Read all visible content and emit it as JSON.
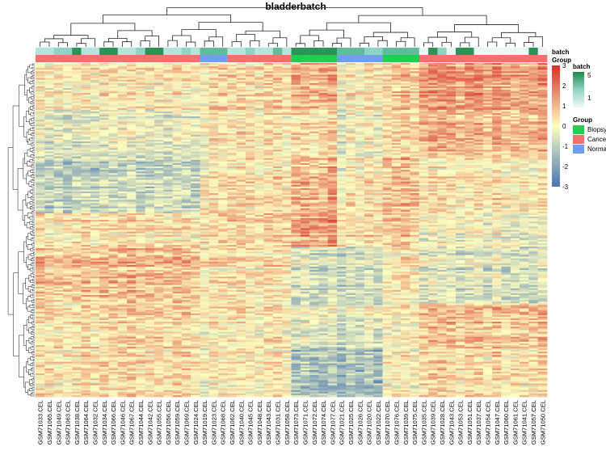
{
  "chart_data": {
    "type": "heatmap",
    "title": "bladderbatch",
    "columns": [
      "GSM71033.CEL",
      "GSM71065.CEL",
      "GSM71049.CEL",
      "GSM71063.CEL",
      "GSM71038.CEL",
      "GSM71064.CEL",
      "GSM71032.CEL",
      "GSM71034.CEL",
      "GSM71066.CEL",
      "GSM71046.CEL",
      "GSM71067.CEL",
      "GSM71044.CEL",
      "GSM71042.CEL",
      "GSM71055.CEL",
      "GSM71056.CEL",
      "GSM71059.CEL",
      "GSM71069.CEL",
      "GSM71024.CEL",
      "GSM71019.CEL",
      "GSM71023.CEL",
      "GSM71068.CEL",
      "GSM71062.CEL",
      "GSM71040.CEL",
      "GSM71045.CEL",
      "GSM71048.CEL",
      "GSM71043.CEL",
      "GSM71031.CEL",
      "GSM71058.CEL",
      "GSM71073.CEL",
      "GSM71071.CEL",
      "GSM71072.CEL",
      "GSM71074.CEL",
      "GSM71077.CEL",
      "GSM71021.CEL",
      "GSM71025.CEL",
      "GSM71026.CEL",
      "GSM71020.CEL",
      "GSM71022.CEL",
      "GSM71070.CEL",
      "GSM71076.CEL",
      "GSM71039.CEL",
      "GSM71075.CEL",
      "GSM71035.CEL",
      "GSM71039.CEL",
      "GSM71028.CEL",
      "GSM71043.CEL",
      "GSM71053.CEL",
      "GSM71051.CEL",
      "GSM71037.CEL",
      "GSM71054.CEL",
      "GSM71047.CEL",
      "GSM71060.CEL",
      "GSM71061.CEL",
      "GSM71041.CEL",
      "GSM71057.CEL",
      "GSM71050.CEL"
    ],
    "annotations": {
      "batch": {
        "label": "batch",
        "values": [
          2,
          2,
          3,
          3,
          5,
          2,
          2,
          5,
          5,
          2,
          2,
          3,
          5,
          5,
          2,
          2,
          3,
          2,
          4,
          4,
          4,
          2,
          2,
          3,
          2,
          2,
          4,
          2,
          5,
          5,
          5,
          5,
          5,
          4,
          4,
          4,
          3,
          3,
          4,
          4,
          4,
          4,
          1,
          5,
          3,
          1,
          5,
          5,
          1,
          1,
          1,
          1,
          1,
          1,
          5,
          1
        ]
      },
      "group": {
        "label": "Group",
        "values": [
          "Cancer",
          "Cancer",
          "Cancer",
          "Cancer",
          "Cancer",
          "Cancer",
          "Cancer",
          "Cancer",
          "Cancer",
          "Cancer",
          "Cancer",
          "Cancer",
          "Cancer",
          "Cancer",
          "Cancer",
          "Cancer",
          "Cancer",
          "Cancer",
          "Normal",
          "Normal",
          "Normal",
          "Cancer",
          "Cancer",
          "Cancer",
          "Cancer",
          "Cancer",
          "Cancer",
          "Cancer",
          "Biopsy",
          "Biopsy",
          "Biopsy",
          "Biopsy",
          "Biopsy",
          "Normal",
          "Normal",
          "Normal",
          "Normal",
          "Normal",
          "Biopsy",
          "Biopsy",
          "Biopsy",
          "Biopsy",
          "Cancer",
          "Cancer",
          "Cancer",
          "Cancer",
          "Cancer",
          "Cancer",
          "Cancer",
          "Cancer",
          "Cancer",
          "Cancer",
          "Cancer",
          "Cancer",
          "Cancer",
          "Cancer"
        ]
      }
    },
    "color_scale": {
      "breaks": [
        -3,
        0,
        3
      ],
      "colors": [
        "#4575b4",
        "#fefec0",
        "#d73027"
      ],
      "ticks": [
        3,
        2,
        1,
        0,
        -1,
        -2,
        -3
      ]
    },
    "legends": {
      "batch": {
        "title": "batch",
        "ticks": [
          5,
          1
        ],
        "colors": [
          "#1e8a4c",
          "#f0f9f7"
        ]
      },
      "group": {
        "title": "Group",
        "items": [
          {
            "label": "Biopsy",
            "color": "#1fd050"
          },
          {
            "label": "Cancer",
            "color": "#f1716c"
          },
          {
            "label": "Normal",
            "color": "#6f9ef0"
          }
        ]
      }
    }
  }
}
